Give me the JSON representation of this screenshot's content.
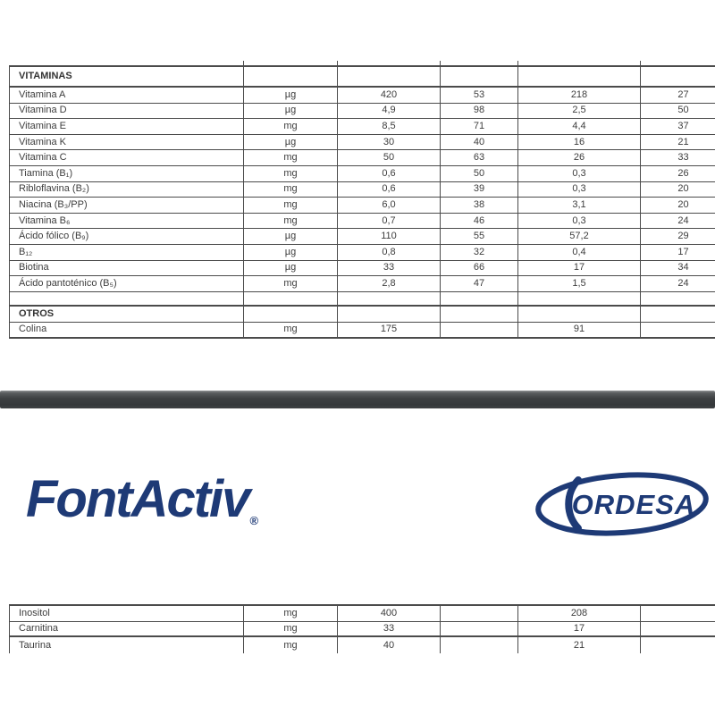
{
  "colors": {
    "border": "#4b4b4b",
    "text": "#3d3d3d",
    "navy": "#1e3a76",
    "bar": "#3d4042"
  },
  "vitamins_table": {
    "rows": [
      {
        "kind": "header",
        "name": "VITAMINAS",
        "unit": "",
        "v1": "",
        "v2": "",
        "v3": "",
        "v4": ""
      },
      {
        "kind": "data",
        "name": "Vitamina A",
        "unit": "µg",
        "v1": "420",
        "v2": "53",
        "v3": "218",
        "v4": "27"
      },
      {
        "kind": "data",
        "name": "Vitamina D",
        "unit": "µg",
        "v1": "4,9",
        "v2": "98",
        "v3": "2,5",
        "v4": "50"
      },
      {
        "kind": "data",
        "name": "Vitamina E",
        "unit": "mg",
        "v1": "8,5",
        "v2": "71",
        "v3": "4,4",
        "v4": "37"
      },
      {
        "kind": "data",
        "name": "Vitamina K",
        "unit": "µg",
        "v1": "30",
        "v2": "40",
        "v3": "16",
        "v4": "21"
      },
      {
        "kind": "data",
        "name": "Vitamina C",
        "unit": "mg",
        "v1": "50",
        "v2": "63",
        "v3": "26",
        "v4": "33"
      },
      {
        "kind": "data",
        "name": "Tiamina (B₁)",
        "unit": "mg",
        "v1": "0,6",
        "v2": "50",
        "v3": "0,3",
        "v4": "26"
      },
      {
        "kind": "data",
        "name": "Ribloflavina (B₂)",
        "unit": "mg",
        "v1": "0,6",
        "v2": "39",
        "v3": "0,3",
        "v4": "20"
      },
      {
        "kind": "data",
        "name": "Niacina (B₃/PP)",
        "unit": "mg",
        "v1": "6,0",
        "v2": "38",
        "v3": "3,1",
        "v4": "20"
      },
      {
        "kind": "data",
        "name": "Vitamina B₆",
        "unit": "mg",
        "v1": "0,7",
        "v2": "46",
        "v3": "0,3",
        "v4": "24"
      },
      {
        "kind": "data",
        "name": "Ácido fólico (B₉)",
        "unit": "µg",
        "v1": "110",
        "v2": "55",
        "v3": "57,2",
        "v4": "29"
      },
      {
        "kind": "data",
        "name": "B₁₂",
        "unit": "µg",
        "v1": "0,8",
        "v2": "32",
        "v3": "0,4",
        "v4": "17"
      },
      {
        "kind": "data",
        "name": "Biotina",
        "unit": "µg",
        "v1": "33",
        "v2": "66",
        "v3": "17",
        "v4": "34"
      },
      {
        "kind": "data",
        "name": "Ácido pantoténico (B₅)",
        "unit": "mg",
        "v1": "2,8",
        "v2": "47",
        "v3": "1,5",
        "v4": "24"
      },
      {
        "kind": "spacer",
        "name": "",
        "unit": "",
        "v1": "",
        "v2": "",
        "v3": "",
        "v4": ""
      },
      {
        "kind": "section",
        "name": "OTROS",
        "unit": "",
        "v1": "",
        "v2": "",
        "v3": "",
        "v4": ""
      },
      {
        "kind": "last",
        "name": "Colina",
        "unit": "mg",
        "v1": "175",
        "v2": "",
        "v3": "91",
        "v4": ""
      }
    ]
  },
  "bottom_table": {
    "rows": [
      {
        "kind": "data",
        "name": "Inositol",
        "unit": "mg",
        "v1": "400",
        "v2": "",
        "v3": "208",
        "v4": ""
      },
      {
        "kind": "data thick",
        "name": "Carnitina",
        "unit": "mg",
        "v1": "33",
        "v2": "",
        "v3": "17",
        "v4": ""
      },
      {
        "kind": "cut",
        "name": "Taurina",
        "unit": "mg",
        "v1": "40",
        "v2": "",
        "v3": "21",
        "v4": ""
      }
    ]
  },
  "logos": {
    "brand": "FontActiv",
    "brand_mark": "®",
    "company": "ORDESA"
  }
}
